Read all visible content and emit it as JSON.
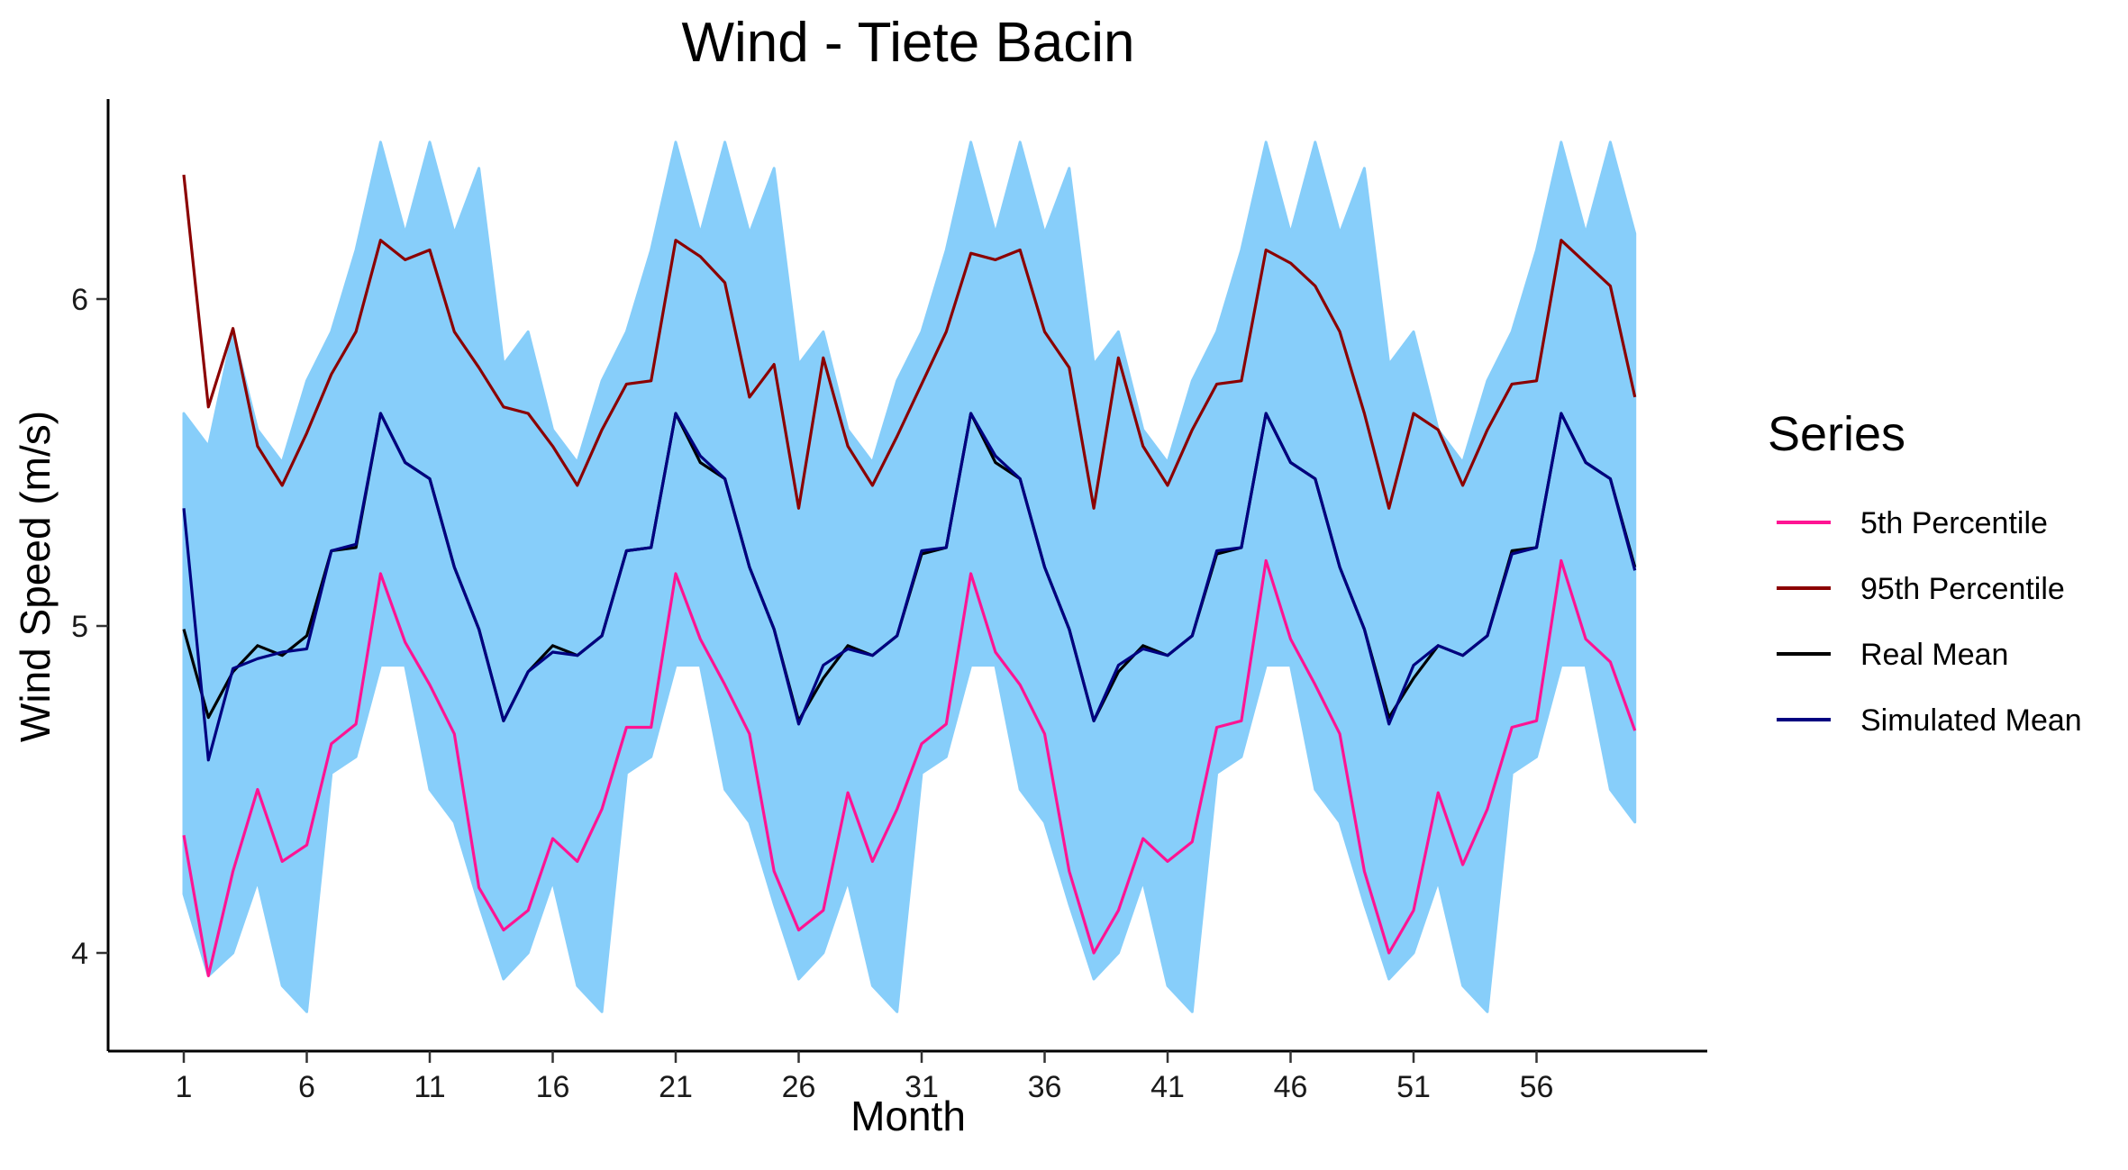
{
  "chart_data": {
    "type": "line",
    "title": "Wind - Tiete Bacin",
    "xlabel": "Month",
    "ylabel": "Wind Speed (m/s)",
    "xlim": [
      1,
      60
    ],
    "ylim": [
      3.7,
      6.6
    ],
    "x_ticks": [
      1,
      6,
      11,
      16,
      21,
      26,
      31,
      36,
      41,
      46,
      51,
      56
    ],
    "y_ticks": [
      4,
      5,
      6
    ],
    "grid": false,
    "legend": {
      "title": "Series",
      "position": "right"
    },
    "simulation_band": {
      "color": "#87CEFA",
      "lower": [
        4.18,
        3.93,
        4.0,
        4.22,
        3.9,
        3.82,
        4.55,
        4.6,
        4.88,
        4.88,
        4.5,
        4.4,
        4.15,
        3.92,
        4.0,
        4.22,
        3.9,
        3.82,
        4.55,
        4.6,
        4.88,
        4.88,
        4.5,
        4.4,
        4.15,
        3.92,
        4.0,
        4.22,
        3.9,
        3.82,
        4.55,
        4.6,
        4.88,
        4.88,
        4.5,
        4.4,
        4.15,
        3.92,
        4.0,
        4.22,
        3.9,
        3.82,
        4.55,
        4.6,
        4.88,
        4.88,
        4.5,
        4.4,
        4.15,
        3.92,
        4.0,
        4.22,
        3.9,
        3.82,
        4.55,
        4.6,
        4.88,
        4.88,
        4.5,
        4.4
      ],
      "upper": [
        5.65,
        5.55,
        5.9,
        5.6,
        5.5,
        5.75,
        5.9,
        6.15,
        6.48,
        6.2,
        6.48,
        6.2,
        6.4,
        5.8,
        5.9,
        5.6,
        5.5,
        5.75,
        5.9,
        6.15,
        6.48,
        6.2,
        6.48,
        6.2,
        6.4,
        5.8,
        5.9,
        5.6,
        5.5,
        5.75,
        5.9,
        6.15,
        6.48,
        6.2,
        6.48,
        6.2,
        6.4,
        5.8,
        5.9,
        5.6,
        5.5,
        5.75,
        5.9,
        6.15,
        6.48,
        6.2,
        6.48,
        6.2,
        6.4,
        5.8,
        5.9,
        5.6,
        5.5,
        5.75,
        5.9,
        6.15,
        6.48,
        6.2,
        6.48,
        6.2
      ]
    },
    "series": [
      {
        "name": "5th Percentile",
        "color": "#FF1493",
        "values": [
          4.36,
          3.93,
          4.25,
          4.5,
          4.28,
          4.33,
          4.64,
          4.7,
          5.16,
          4.95,
          4.82,
          4.67,
          4.2,
          4.07,
          4.13,
          4.35,
          4.28,
          4.44,
          4.69,
          4.69,
          5.16,
          4.96,
          4.82,
          4.67,
          4.25,
          4.07,
          4.13,
          4.49,
          4.28,
          4.44,
          4.64,
          4.7,
          5.16,
          4.92,
          4.82,
          4.67,
          4.25,
          4.0,
          4.13,
          4.35,
          4.28,
          4.34,
          4.69,
          4.71,
          5.2,
          4.96,
          4.82,
          4.67,
          4.25,
          4.0,
          4.13,
          4.49,
          4.27,
          4.44,
          4.69,
          4.71,
          5.2,
          4.96,
          4.89,
          4.68
        ]
      },
      {
        "name": "95th Percentile",
        "color": "#8B0000",
        "values": [
          6.38,
          5.67,
          5.91,
          5.55,
          5.43,
          5.59,
          5.77,
          5.9,
          6.18,
          6.12,
          6.15,
          5.9,
          5.79,
          5.67,
          5.65,
          5.55,
          5.43,
          5.6,
          5.74,
          5.75,
          6.18,
          6.13,
          6.05,
          5.7,
          5.8,
          5.36,
          5.82,
          5.55,
          5.43,
          5.58,
          5.74,
          5.9,
          6.14,
          6.12,
          6.15,
          5.9,
          5.79,
          5.36,
          5.82,
          5.55,
          5.43,
          5.6,
          5.74,
          5.75,
          6.15,
          6.11,
          6.04,
          5.9,
          5.65,
          5.36,
          5.65,
          5.6,
          5.43,
          5.6,
          5.74,
          5.75,
          6.18,
          6.11,
          6.04,
          5.7
        ]
      },
      {
        "name": "Real Mean",
        "color": "#000000",
        "values": [
          4.99,
          4.72,
          4.86,
          4.94,
          4.91,
          4.97,
          5.23,
          5.24,
          5.65,
          5.5,
          5.45,
          5.18,
          4.99,
          4.71,
          4.86,
          4.94,
          4.91,
          4.97,
          5.23,
          5.24,
          5.65,
          5.5,
          5.45,
          5.18,
          4.99,
          4.71,
          4.84,
          4.94,
          4.91,
          4.97,
          5.22,
          5.24,
          5.65,
          5.5,
          5.45,
          5.18,
          4.99,
          4.71,
          4.86,
          4.94,
          4.91,
          4.97,
          5.22,
          5.24,
          5.65,
          5.5,
          5.45,
          5.18,
          4.99,
          4.72,
          4.84,
          4.94,
          4.91,
          4.97,
          5.23,
          5.24,
          5.65,
          5.5,
          5.45,
          5.18
        ]
      },
      {
        "name": "Simulated Mean",
        "color": "#000080",
        "values": [
          5.36,
          4.59,
          4.87,
          4.9,
          4.92,
          4.93,
          5.23,
          5.25,
          5.65,
          5.5,
          5.45,
          5.18,
          4.99,
          4.71,
          4.86,
          4.92,
          4.91,
          4.97,
          5.23,
          5.24,
          5.65,
          5.52,
          5.45,
          5.18,
          4.99,
          4.7,
          4.88,
          4.93,
          4.91,
          4.97,
          5.23,
          5.24,
          5.65,
          5.52,
          5.45,
          5.18,
          4.99,
          4.71,
          4.88,
          4.93,
          4.91,
          4.97,
          5.23,
          5.24,
          5.65,
          5.5,
          5.45,
          5.18,
          4.99,
          4.7,
          4.88,
          4.94,
          4.91,
          4.97,
          5.22,
          5.24,
          5.65,
          5.5,
          5.45,
          5.17
        ]
      }
    ]
  }
}
